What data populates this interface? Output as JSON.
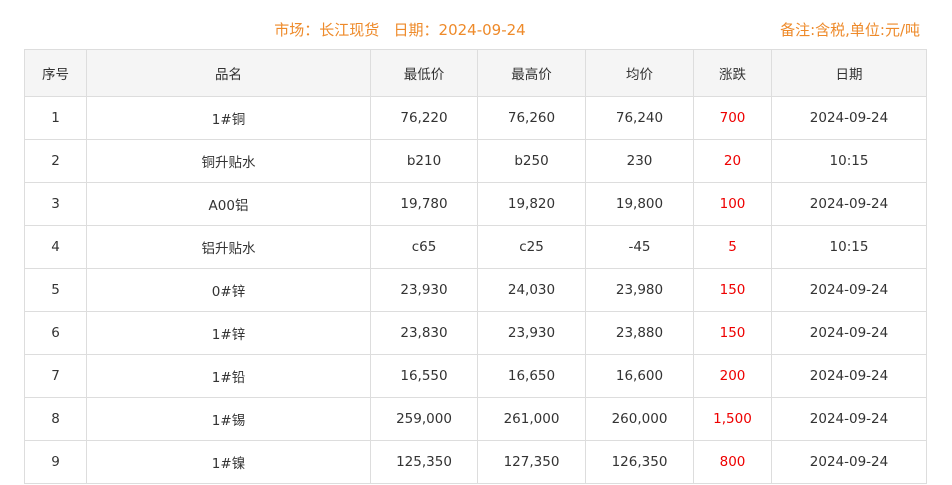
{
  "header": {
    "title": "市场：长江现货   日期：2024-09-24",
    "note": "备注:含税,单位:元/吨"
  },
  "colors": {
    "accent": "#ee8a2a",
    "change": "#e00000"
  },
  "table": {
    "columns": [
      "序号",
      "品名",
      "最低价",
      "最高价",
      "均价",
      "涨跌",
      "日期"
    ],
    "rows": [
      [
        "1",
        "1#铜",
        "76,220",
        "76,260",
        "76,240",
        "700",
        "2024-09-24"
      ],
      [
        "2",
        "铜升贴水",
        "b210",
        "b250",
        "230",
        "20",
        "10:15"
      ],
      [
        "3",
        "A00铝",
        "19,780",
        "19,820",
        "19,800",
        "100",
        "2024-09-24"
      ],
      [
        "4",
        "铝升贴水",
        "c65",
        "c25",
        "-45",
        "5",
        "10:15"
      ],
      [
        "5",
        "0#锌",
        "23,930",
        "24,030",
        "23,980",
        "150",
        "2024-09-24"
      ],
      [
        "6",
        "1#锌",
        "23,830",
        "23,930",
        "23,880",
        "150",
        "2024-09-24"
      ],
      [
        "7",
        "1#铅",
        "16,550",
        "16,650",
        "16,600",
        "200",
        "2024-09-24"
      ],
      [
        "8",
        "1#锡",
        "259,000",
        "261,000",
        "260,000",
        "1,500",
        "2024-09-24"
      ],
      [
        "9",
        "1#镍",
        "125,350",
        "127,350",
        "126,350",
        "800",
        "2024-09-24"
      ]
    ]
  }
}
